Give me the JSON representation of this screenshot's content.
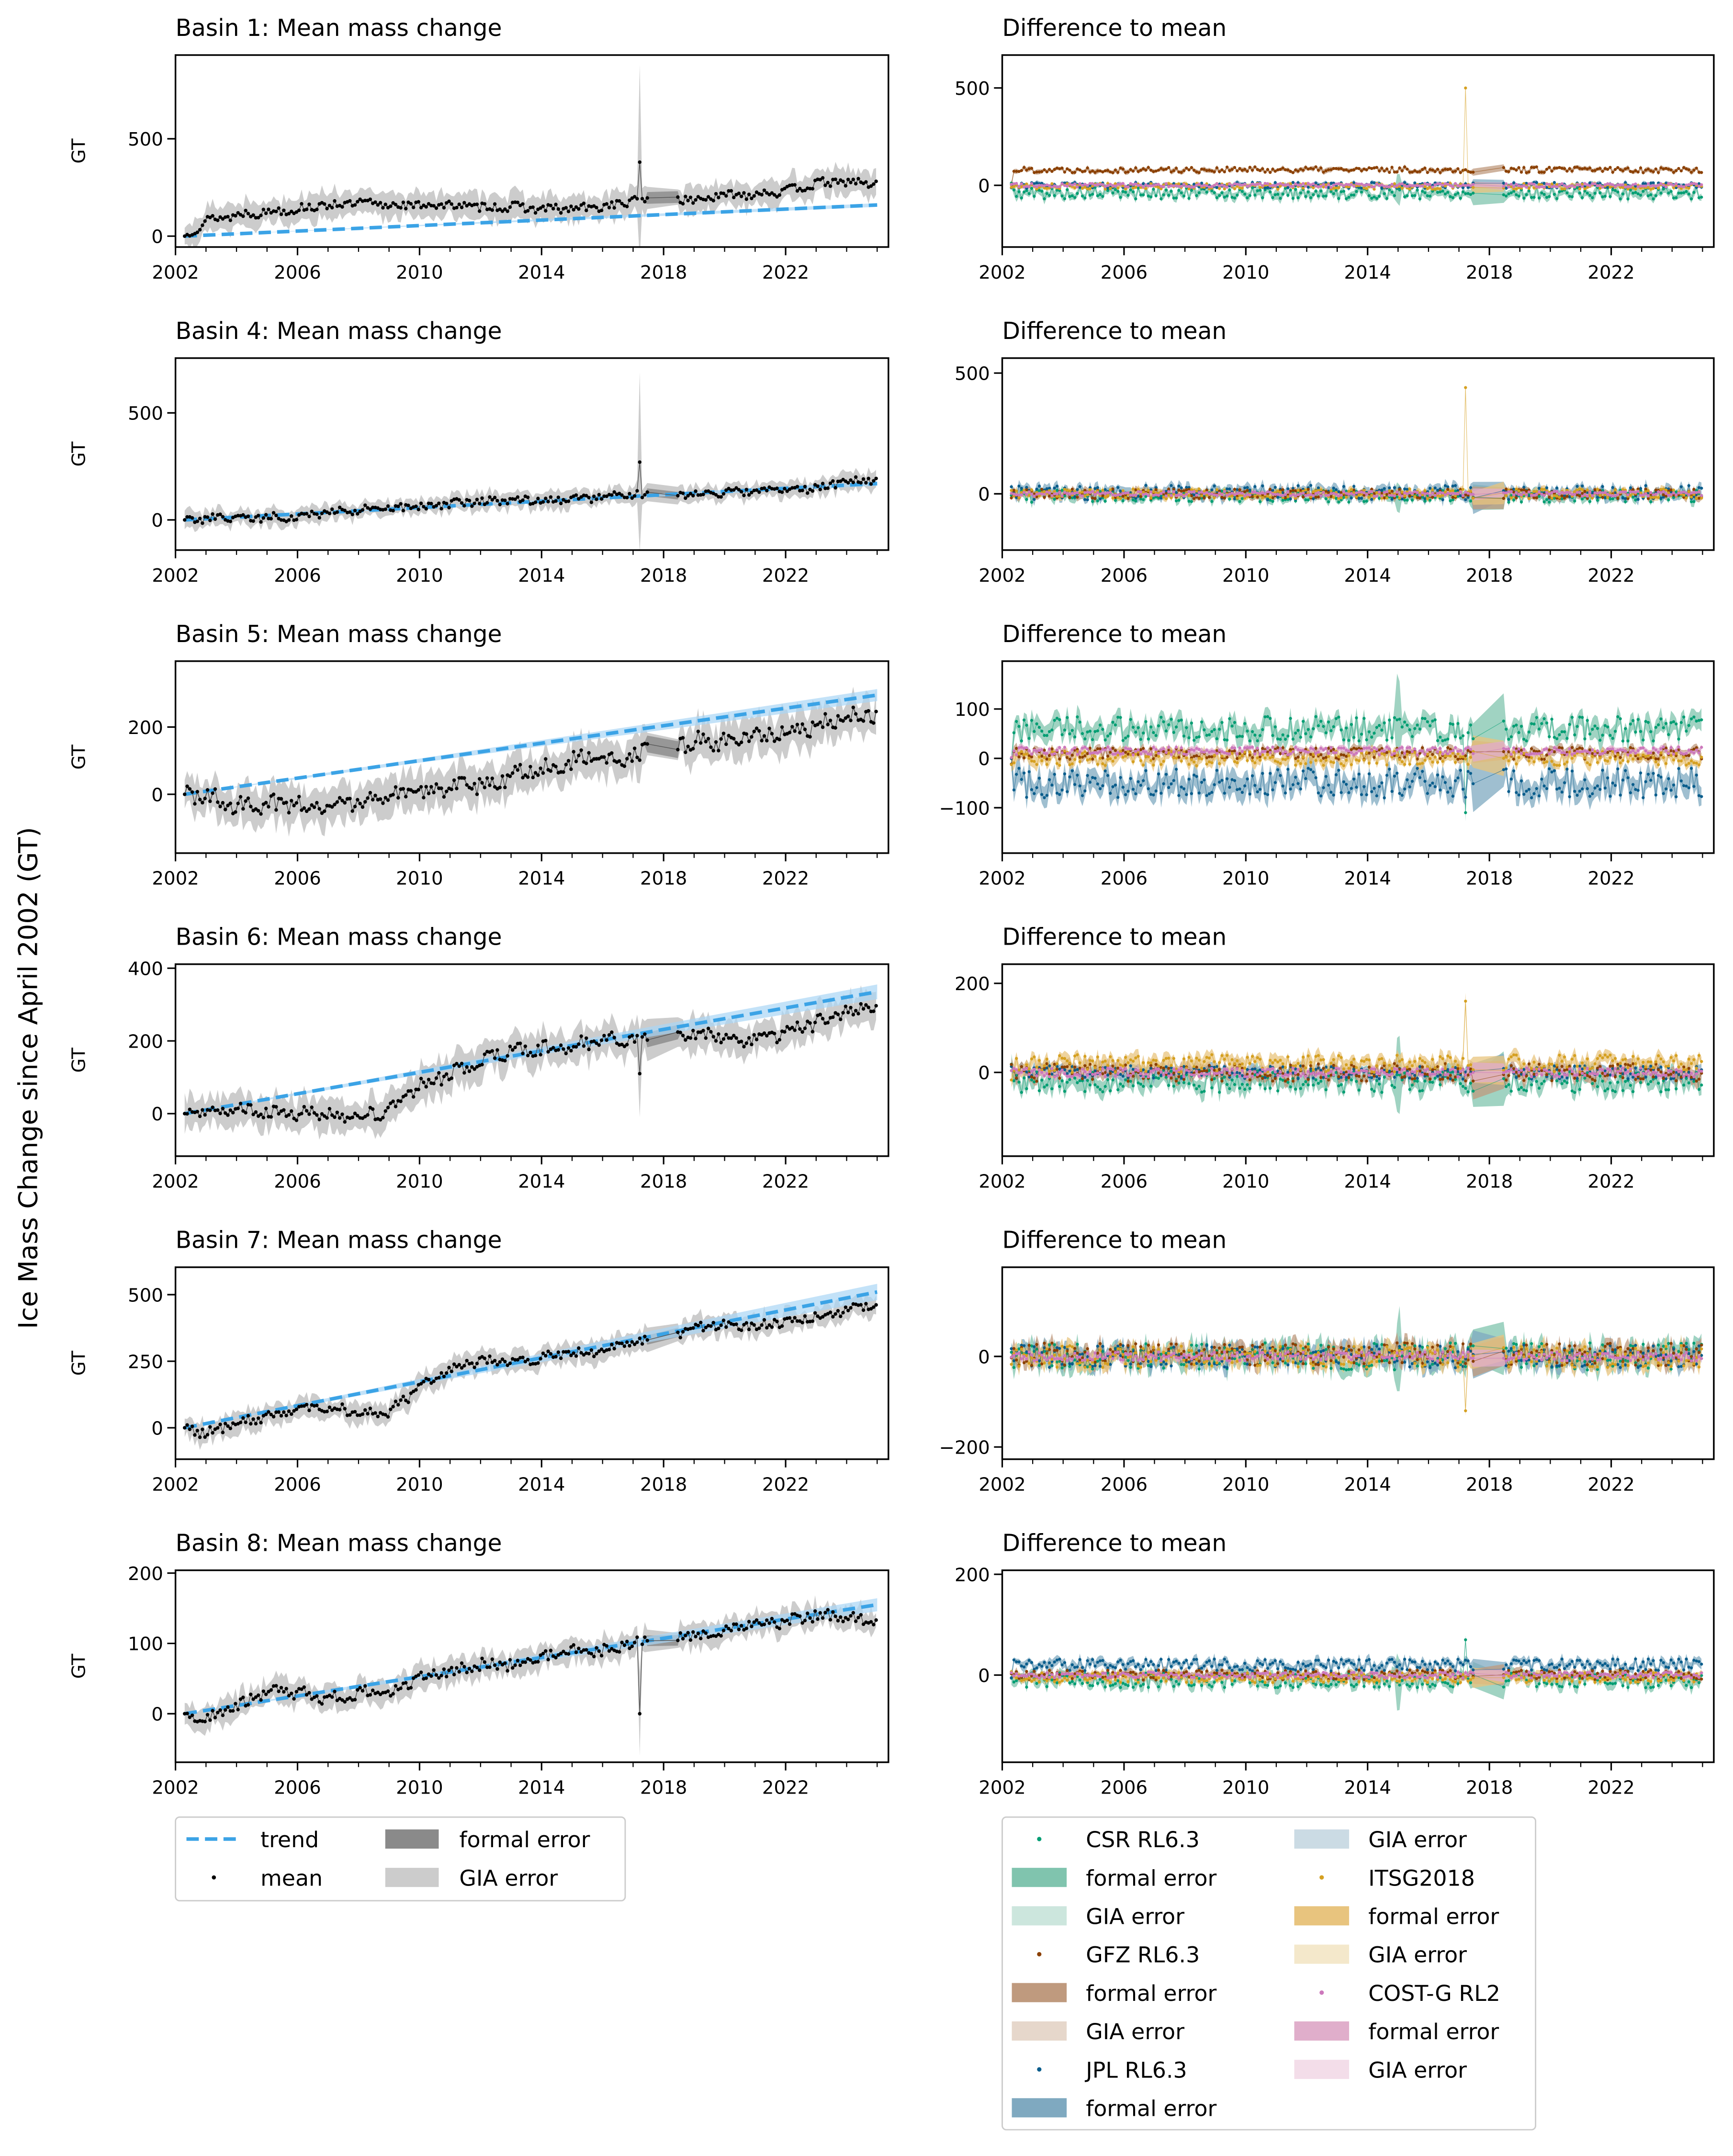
{
  "chart_data": {
    "type": "line",
    "global_ylabel": "Ice Mass Change since April 2002 (GT)",
    "xlim": [
      2002,
      2025.37
    ],
    "xticks": [
      "2002",
      "2006",
      "2010",
      "2014",
      "2018",
      "2022"
    ],
    "years": [
      2002.3,
      2003,
      2004,
      2005,
      2006,
      2007,
      2008,
      2009,
      2010,
      2011,
      2012,
      2013,
      2014,
      2015,
      2016,
      2017,
      2018,
      2019,
      2020,
      2021,
      2022,
      2023,
      2024,
      2025
    ],
    "colors": {
      "trend": "#3ba3e6",
      "trend_band": "#a9d6f5",
      "mean": "#000000",
      "formal": "#8a8a8a",
      "gia": "#cccccc"
    },
    "mean_panels": [
      {
        "title": "Basin 1: Mean mass change",
        "ylabel": "GT",
        "ylim": [
          -56,
          930
        ],
        "yticks": [
          "0",
          "500"
        ],
        "trend_end": 160,
        "mean": [
          0,
          80,
          110,
          125,
          140,
          160,
          170,
          160,
          160,
          160,
          150,
          150,
          140,
          140,
          150,
          180,
          200,
          185,
          210,
          220,
          230,
          270,
          280,
          265
        ],
        "spike": {
          "x": 2017.2,
          "y": 380,
          "err": 500
        },
        "gia_err": 60,
        "noise": 22
      },
      {
        "title": "Basin 4: Mean mass change",
        "ylabel": "GT",
        "ylim": [
          -141,
          756
        ],
        "yticks": [
          "0",
          "500"
        ],
        "trend_end": 170,
        "mean": [
          0,
          5,
          10,
          10,
          15,
          40,
          45,
          50,
          60,
          75,
          85,
          90,
          95,
          100,
          105,
          115,
          120,
          120,
          130,
          130,
          140,
          150,
          180,
          190
        ],
        "spike": {
          "x": 2017.2,
          "y": 270,
          "err": 420
        },
        "gia_err": 35,
        "noise": 18
      },
      {
        "title": "Basin 5: Mean mass change",
        "ylabel": "GT",
        "ylim": [
          -175,
          396
        ],
        "yticks": [
          "0",
          "200"
        ],
        "trend_end": 295,
        "mean": [
          0,
          -10,
          -30,
          -30,
          -30,
          -40,
          -20,
          -10,
          0,
          20,
          30,
          50,
          80,
          100,
          110,
          110,
          140,
          160,
          160,
          170,
          190,
          200,
          230,
          240
        ],
        "spike": null,
        "gia_err": 50,
        "noise": 25
      },
      {
        "title": "Basin 6: Mean mass change",
        "ylabel": "GT",
        "ylim": [
          -117,
          411
        ],
        "yticks": [
          "0",
          "200",
          "400"
        ],
        "trend_end": 335,
        "mean": [
          0,
          10,
          10,
          0,
          0,
          0,
          -10,
          10,
          80,
          110,
          150,
          170,
          180,
          190,
          200,
          210,
          200,
          220,
          210,
          200,
          220,
          250,
          280,
          300
        ],
        "spike": {
          "x": 2017.2,
          "y": 110,
          "err": 120
        },
        "gia_err": 40,
        "noise": 18
      },
      {
        "title": "Basin 7: Mean mass change",
        "ylabel": "GT",
        "ylim": [
          -118,
          603
        ],
        "yticks": [
          "0",
          "250",
          "500"
        ],
        "trend_end": 510,
        "mean": [
          0,
          -20,
          20,
          40,
          60,
          80,
          60,
          60,
          150,
          220,
          250,
          250,
          260,
          280,
          290,
          320,
          340,
          370,
          390,
          380,
          400,
          420,
          440,
          460
        ],
        "spike": null,
        "gia_err": 35,
        "noise": 18
      },
      {
        "title": "Basin 8: Mean mass change",
        "ylabel": "GT",
        "ylim": [
          -69,
          204
        ],
        "yticks": [
          "0",
          "100",
          "200"
        ],
        "trend_end": 155,
        "mean": [
          0,
          -10,
          10,
          30,
          30,
          20,
          30,
          30,
          50,
          60,
          70,
          70,
          80,
          90,
          90,
          100,
          110,
          110,
          120,
          130,
          130,
          140,
          140,
          130
        ],
        "spike": {
          "x": 2017.2,
          "y": 0,
          "err": 60
        },
        "gia_err": 15,
        "noise": 8
      }
    ],
    "centers": [
      {
        "name": "CSR RL6.3",
        "dot": "#029e73",
        "formal": "#80c4ae",
        "gia": "#cce6dd"
      },
      {
        "name": "GFZ RL6.3",
        "dot": "#8b4000",
        "formal": "#bf9a7e",
        "gia": "#e6d7cb"
      },
      {
        "name": "JPL RL6.3",
        "dot": "#0a5d8c",
        "formal": "#7fa9c0",
        "gia": "#cbdbe4"
      },
      {
        "name": "ITSG2018",
        "dot": "#d5a021",
        "formal": "#e8c47e",
        "gia": "#f4e8cb"
      },
      {
        "name": "COST-G RL2",
        "dot": "#cc78bc",
        "formal": "#e0aecb",
        "gia": "#f3dde9"
      }
    ],
    "diff_panels": [
      {
        "title": "Difference to mean",
        "ylim": [
          -317,
          669
        ],
        "yticks": [
          "0",
          "500"
        ],
        "offsets": [
          -40,
          80,
          0,
          -5,
          0
        ],
        "noise": [
          30,
          15,
          15,
          15,
          10
        ],
        "spike": {
          "x": 2017.2,
          "center": 3,
          "y": 500
        }
      },
      {
        "title": "Difference to mean",
        "ylim": [
          -233,
          562
        ],
        "yticks": [
          "0",
          "500"
        ],
        "offsets": [
          -10,
          0,
          5,
          0,
          0
        ],
        "noise": [
          25,
          20,
          30,
          20,
          10
        ],
        "spike": {
          "x": 2017.2,
          "center": 3,
          "y": 440
        }
      },
      {
        "title": "Difference to mean",
        "ylim": [
          -192,
          197
        ],
        "yticks": [
          "100",
          "0",
          "−100"
        ],
        "offsets": [
          60,
          10,
          -50,
          0,
          15
        ],
        "noise": [
          25,
          12,
          30,
          15,
          8
        ],
        "spike": {
          "x": 2017.2,
          "center": 0,
          "y": -110
        }
      },
      {
        "title": "Difference to mean",
        "ylim": [
          -188,
          243
        ],
        "yticks": [
          "200",
          "0"
        ],
        "offsets": [
          -20,
          0,
          0,
          20,
          0
        ],
        "noise": [
          25,
          20,
          15,
          20,
          10
        ],
        "spike": {
          "x": 2017.2,
          "center": 3,
          "y": 160
        }
      },
      {
        "title": "Difference to mean",
        "ylim": [
          -227,
          197
        ],
        "yticks": [
          "0",
          "−200"
        ],
        "offsets": [
          0,
          5,
          0,
          0,
          0
        ],
        "noise": [
          30,
          25,
          25,
          25,
          10
        ],
        "spike": {
          "x": 2017.2,
          "center": 3,
          "y": -120
        }
      },
      {
        "title": "Difference to mean",
        "ylim": [
          -173,
          208
        ],
        "yticks": [
          "200",
          "0"
        ],
        "offsets": [
          -10,
          0,
          20,
          -5,
          0
        ],
        "noise": [
          15,
          10,
          12,
          10,
          6
        ],
        "spike": {
          "x": 2017.2,
          "center": 0,
          "y": 70
        }
      }
    ]
  },
  "legend_left": {
    "trend": "trend",
    "mean": "mean",
    "formal": "formal error",
    "gia": "GIA error"
  },
  "legend_right": [
    {
      "kind": "dot",
      "center": 0,
      "label": "CSR RL6.3"
    },
    {
      "kind": "formal",
      "center": 0,
      "label": "formal error"
    },
    {
      "kind": "gia",
      "center": 0,
      "label": "GIA error"
    },
    {
      "kind": "dot",
      "center": 1,
      "label": "GFZ RL6.3"
    },
    {
      "kind": "formal",
      "center": 1,
      "label": "formal error"
    },
    {
      "kind": "gia",
      "center": 1,
      "label": "GIA error"
    },
    {
      "kind": "dot",
      "center": 2,
      "label": "JPL RL6.3"
    },
    {
      "kind": "formal",
      "center": 2,
      "label": "formal error"
    },
    {
      "kind": "gia",
      "center": 2,
      "label": "GIA error"
    },
    {
      "kind": "dot",
      "center": 3,
      "label": "ITSG2018"
    },
    {
      "kind": "formal",
      "center": 3,
      "label": "formal error"
    },
    {
      "kind": "gia",
      "center": 3,
      "label": "GIA error"
    },
    {
      "kind": "dot",
      "center": 4,
      "label": "COST-G RL2"
    },
    {
      "kind": "formal",
      "center": 4,
      "label": "formal error"
    },
    {
      "kind": "gia",
      "center": 4,
      "label": "GIA error"
    }
  ]
}
